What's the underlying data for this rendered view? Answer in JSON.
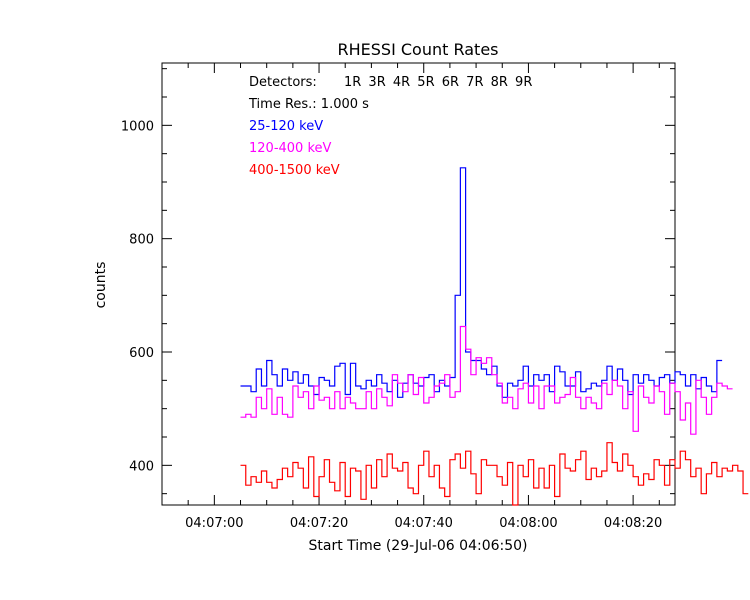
{
  "chart_data": {
    "type": "line",
    "title": "RHESSI Count Rates",
    "xlabel": "Start Time (29-Jul-06 04:06:50)",
    "ylabel": "counts",
    "x_unit": "seconds after 04:06:50",
    "xlim": [
      0,
      98
    ],
    "ylim": [
      330,
      1110
    ],
    "x_ticks": [
      {
        "t": 10,
        "label": "04:07:00"
      },
      {
        "t": 30,
        "label": "04:07:20"
      },
      {
        "t": 50,
        "label": "04:07:40"
      },
      {
        "t": 70,
        "label": "04:08:00"
      },
      {
        "t": 90,
        "label": "04:08:20"
      }
    ],
    "y_ticks": [
      400,
      600,
      800,
      1000
    ],
    "grid": false,
    "legend_position": "top-left",
    "annotations": {
      "detectors_label": "Detectors:",
      "detectors": "1R 3R 4R 5R 6R 7R 8R 9R",
      "time_res": "Time Res.: 1.000 s"
    },
    "x_start": 15,
    "x_step": 1,
    "series": [
      {
        "name": "25-120 keV",
        "color": "#0000ff",
        "values": [
          540,
          540,
          530,
          570,
          540,
          585,
          560,
          540,
          570,
          550,
          565,
          545,
          560,
          540,
          525,
          555,
          550,
          540,
          575,
          580,
          525,
          580,
          540,
          535,
          550,
          540,
          560,
          545,
          530,
          550,
          520,
          545,
          560,
          545,
          540,
          555,
          560,
          530,
          550,
          540,
          555,
          700,
          925,
          600,
          585,
          585,
          570,
          560,
          575,
          540,
          520,
          545,
          540,
          550,
          575,
          540,
          560,
          550,
          560,
          530,
          575,
          565,
          540,
          540,
          565,
          530,
          535,
          545,
          540,
          550,
          575,
          550,
          570,
          550,
          525,
          560,
          545,
          560,
          550,
          540,
          555,
          560,
          545,
          565,
          560,
          540,
          560,
          535,
          555,
          540,
          530,
          585
        ]
      },
      {
        "name": "120-400 keV",
        "color": "#ff00ff",
        "values": [
          485,
          490,
          485,
          520,
          500,
          535,
          490,
          520,
          490,
          485,
          540,
          520,
          530,
          500,
          540,
          515,
          520,
          500,
          530,
          500,
          520,
          510,
          500,
          500,
          530,
          500,
          535,
          520,
          505,
          560,
          545,
          530,
          560,
          525,
          555,
          510,
          520,
          540,
          545,
          560,
          520,
          530,
          645,
          605,
          560,
          590,
          580,
          590,
          560,
          545,
          510,
          520,
          500,
          535,
          545,
          510,
          540,
          500,
          540,
          540,
          510,
          520,
          525,
          555,
          520,
          500,
          520,
          510,
          500,
          545,
          525,
          550,
          540,
          500,
          530,
          460,
          540,
          520,
          510,
          540,
          530,
          490,
          545,
          530,
          480,
          510,
          455,
          550,
          520,
          490,
          520,
          545,
          540,
          535
        ]
      },
      {
        "name": "400-1500 keV",
        "color": "#ff0000",
        "values": [
          400,
          365,
          380,
          370,
          390,
          370,
          360,
          375,
          395,
          380,
          405,
          395,
          360,
          415,
          345,
          380,
          410,
          370,
          355,
          405,
          345,
          395,
          390,
          340,
          400,
          360,
          410,
          380,
          420,
          395,
          390,
          405,
          360,
          350,
          400,
          425,
          380,
          400,
          360,
          345,
          410,
          420,
          395,
          425,
          385,
          350,
          410,
          400,
          400,
          380,
          365,
          405,
          330,
          400,
          380,
          410,
          360,
          395,
          360,
          400,
          345,
          420,
          395,
          390,
          410,
          425,
          375,
          395,
          380,
          390,
          440,
          405,
          390,
          420,
          400,
          380,
          365,
          385,
          375,
          410,
          400,
          365,
          410,
          395,
          425,
          410,
          380,
          395,
          350,
          385,
          405,
          380,
          395,
          390,
          400,
          390,
          350
        ]
      }
    ]
  }
}
